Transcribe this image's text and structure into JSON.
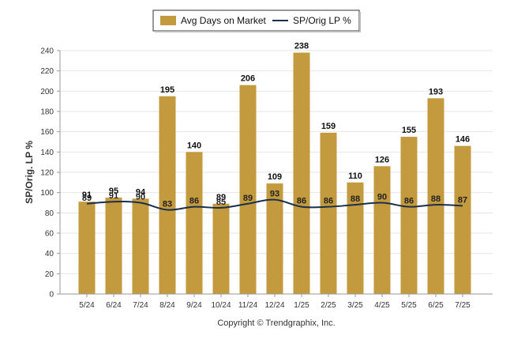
{
  "chart_data": {
    "type": "bar",
    "categories": [
      "5/24",
      "6/24",
      "7/24",
      "8/24",
      "9/24",
      "10/24",
      "11/24",
      "12/24",
      "1/25",
      "2/25",
      "3/25",
      "4/25",
      "5/25",
      "6/25",
      "7/25"
    ],
    "series": [
      {
        "name": "Avg Days on Market",
        "type": "bar",
        "color": "#C49A3F",
        "values": [
          91,
          95,
          94,
          195,
          140,
          89,
          206,
          109,
          238,
          159,
          110,
          126,
          155,
          193,
          146
        ]
      },
      {
        "name": "SP/Orig LP %",
        "type": "line",
        "color": "#1B2F4B",
        "values": [
          89,
          91,
          90,
          83,
          86,
          85,
          89,
          93,
          86,
          86,
          88,
          90,
          86,
          88,
          87
        ]
      }
    ],
    "ylabel": "SP/Orig. LP %",
    "ylim": [
      0,
      240
    ],
    "yticks": [
      0,
      20,
      40,
      60,
      80,
      100,
      120,
      140,
      160,
      180,
      200,
      220,
      240
    ],
    "grid": true,
    "legend_position": "top-center"
  },
  "footer": {
    "copyright": "Copyright © Trendgraphix, Inc."
  }
}
